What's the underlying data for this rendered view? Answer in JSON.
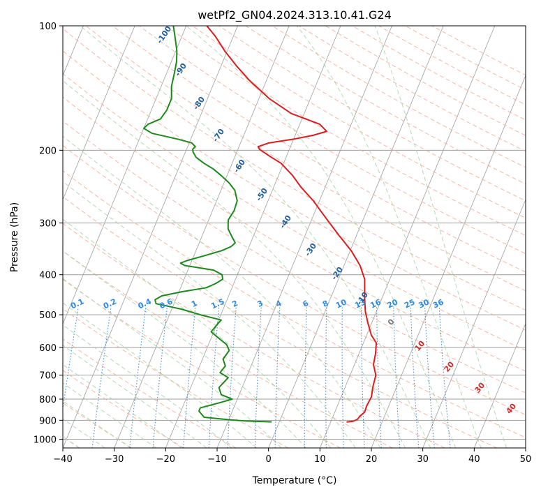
{
  "chart_data": {
    "type": "line",
    "subtype": "skew-t log-p",
    "title": "wetPf2_GN04.2024.313.10.41.G24",
    "xlabel": "Temperature (°C)",
    "ylabel": "Pressure (hPa)",
    "xlim": [
      -40,
      50
    ],
    "ylim": [
      1050,
      100
    ],
    "y_scale": "log",
    "x_ticks": [
      -40,
      -30,
      -20,
      -10,
      0,
      10,
      20,
      30,
      40,
      50
    ],
    "y_ticks": [
      100,
      200,
      300,
      400,
      500,
      600,
      700,
      800,
      900,
      1000
    ],
    "grid": true,
    "series": [
      {
        "color": "#e31a1c",
        "role": "temperature",
        "points": [
          [
            909,
            13.1
          ],
          [
            905,
            14.3
          ],
          [
            895,
            15.0
          ],
          [
            880,
            15.2
          ],
          [
            860,
            15.8
          ],
          [
            830,
            15.7
          ],
          [
            790,
            15.9
          ],
          [
            750,
            15.4
          ],
          [
            700,
            15.0
          ],
          [
            660,
            13.7
          ],
          [
            620,
            13.2
          ],
          [
            585,
            12.5
          ],
          [
            560,
            10.9
          ],
          [
            520,
            9.1
          ],
          [
            490,
            7.8
          ],
          [
            455,
            6.6
          ],
          [
            410,
            5.1
          ],
          [
            380,
            3.1
          ],
          [
            350,
            0.2
          ],
          [
            320,
            -3.6
          ],
          [
            290,
            -7.6
          ],
          [
            265,
            -11.2
          ],
          [
            245,
            -14.8
          ],
          [
            230,
            -17.3
          ],
          [
            215,
            -20.5
          ],
          [
            207,
            -23.2
          ],
          [
            202,
            -24.8
          ],
          [
            199,
            -25.8
          ],
          [
            196,
            -26.3
          ],
          [
            192,
            -24.5
          ],
          [
            188,
            -20.0
          ],
          [
            184,
            -16.5
          ],
          [
            180,
            -14.2
          ],
          [
            173,
            -16.1
          ],
          [
            163,
            -22.5
          ],
          [
            150,
            -28.0
          ],
          [
            135,
            -33.5
          ],
          [
            125,
            -37.0
          ],
          [
            115,
            -40.5
          ],
          [
            106,
            -43.5
          ],
          [
            100,
            -46.0
          ]
        ]
      },
      {
        "color": "#1a8a1a",
        "role": "dewpoint",
        "points": [
          [
            908,
            -1.5
          ],
          [
            903,
            -7.0
          ],
          [
            897,
            -10.0
          ],
          [
            885,
            -15.0
          ],
          [
            855,
            -16.5
          ],
          [
            840,
            -16.5
          ],
          [
            815,
            -13.0
          ],
          [
            800,
            -11.0
          ],
          [
            780,
            -13.5
          ],
          [
            750,
            -14.5
          ],
          [
            730,
            -14.0
          ],
          [
            710,
            -13.5
          ],
          [
            690,
            -15.5
          ],
          [
            665,
            -15.0
          ],
          [
            640,
            -16.0
          ],
          [
            610,
            -15.5
          ],
          [
            590,
            -16.5
          ],
          [
            570,
            -18.5
          ],
          [
            550,
            -20.5
          ],
          [
            530,
            -20.0
          ],
          [
            515,
            -19.5
          ],
          [
            500,
            -24.0
          ],
          [
            485,
            -28.0
          ],
          [
            470,
            -33.5
          ],
          [
            460,
            -34.0
          ],
          [
            450,
            -33.0
          ],
          [
            440,
            -29.5
          ],
          [
            430,
            -25.0
          ],
          [
            420,
            -23.5
          ],
          [
            410,
            -22.5
          ],
          [
            400,
            -23.0
          ],
          [
            390,
            -25.0
          ],
          [
            380,
            -31.0
          ],
          [
            375,
            -32.0
          ],
          [
            370,
            -31.0
          ],
          [
            360,
            -28.0
          ],
          [
            350,
            -25.0
          ],
          [
            342,
            -23.5
          ],
          [
            335,
            -23.0
          ],
          [
            325,
            -24.0
          ],
          [
            310,
            -25.5
          ],
          [
            295,
            -26.2
          ],
          [
            280,
            -25.8
          ],
          [
            265,
            -26.0
          ],
          [
            250,
            -27.3
          ],
          [
            240,
            -29.0
          ],
          [
            230,
            -31.2
          ],
          [
            222,
            -33.2
          ],
          [
            215,
            -35.5
          ],
          [
            208,
            -37.5
          ],
          [
            202,
            -38.5
          ],
          [
            199,
            -38.8
          ],
          [
            196,
            -38.5
          ],
          [
            192,
            -39.5
          ],
          [
            188,
            -42.5
          ],
          [
            182,
            -48.0
          ],
          [
            177,
            -50.0
          ],
          [
            173,
            -49.5
          ],
          [
            168,
            -47.5
          ],
          [
            160,
            -47.0
          ],
          [
            150,
            -47.0
          ],
          [
            140,
            -48.0
          ],
          [
            130,
            -48.5
          ],
          [
            122,
            -49.0
          ],
          [
            115,
            -49.8
          ],
          [
            108,
            -51.0
          ],
          [
            100,
            -52.5
          ]
        ]
      }
    ],
    "dry_adiabat_labels": [
      "-100",
      "-90",
      "-80",
      "-70",
      "-60",
      "-50",
      "-40",
      "-30",
      "-20",
      "-10"
    ],
    "moist_adiabat_labels": [
      "0",
      "10",
      "20",
      "30",
      "40"
    ],
    "mixing_ratio_labels": [
      "0.1",
      "0.2",
      "0.4",
      "0.6",
      "1",
      "1.5",
      "2",
      "3",
      "4",
      "6",
      "8",
      "10",
      "13",
      "16",
      "20",
      "25",
      "30",
      "36"
    ],
    "colors": {
      "temperature": "#e31a1c",
      "dewpoint": "#1a8a1a",
      "dry_adiabats": "#f7a98e",
      "moist_adiabats": "#a5d3a5",
      "mixing_ratio": "#3a8ee0",
      "isotherms": "#9e9e9e",
      "isobars": "#9e9e9e",
      "dry_label": "#1f5fa0",
      "moist_label": "#d62728",
      "mixing_label": "#2d8ae6",
      "boundary": "#b39a7a"
    }
  }
}
